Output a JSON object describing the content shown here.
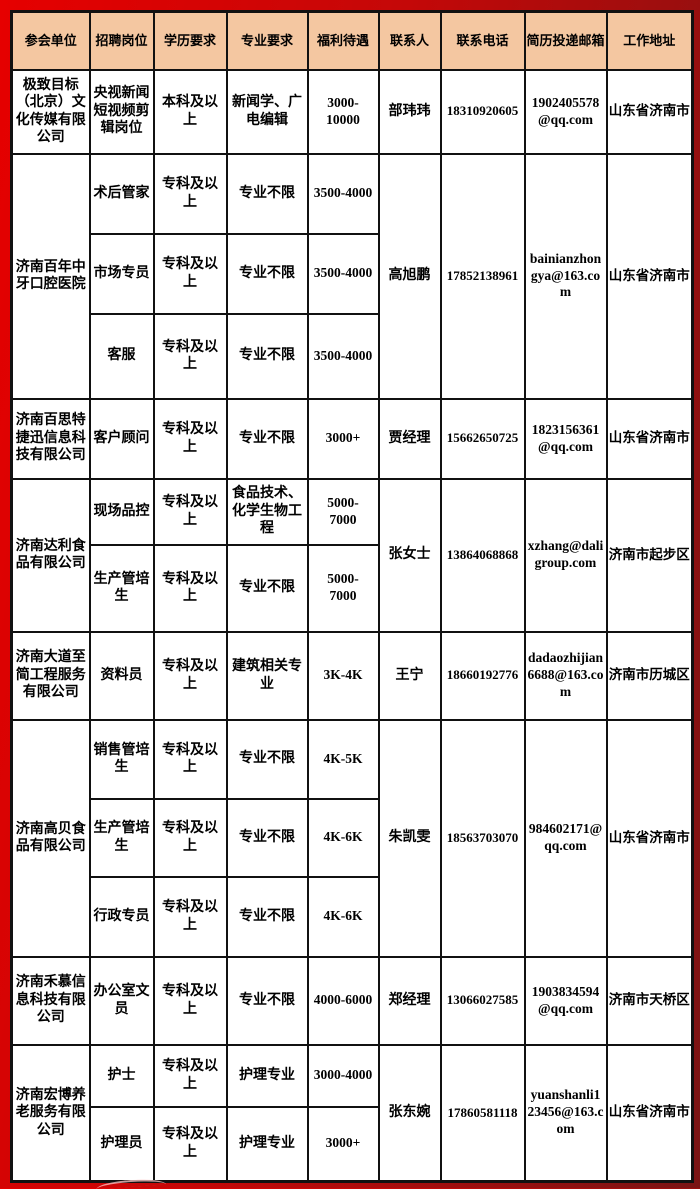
{
  "colors": {
    "page_bg_left": "#e60000",
    "page_bg_right": "#7a1414",
    "header_bg": "#f4c7a1",
    "cell_bg": "#ffffff",
    "border": "#111111",
    "text": "#000000"
  },
  "table": {
    "headers": [
      "参会单位",
      "招聘岗位",
      "学历要求",
      "专业要求",
      "福利待遇",
      "联系人",
      "联系电话",
      "简历投递邮箱",
      "工作地址"
    ],
    "companies": [
      {
        "name": "极致目标（北京）文化传媒有限公司",
        "contact": "部玮玮",
        "phone": "18310920605",
        "email": "1902405578@qq.com",
        "address": "山东省济南市",
        "positions": [
          {
            "title": "央视新闻短视频剪辑岗位",
            "education": "本科及以上",
            "major": "新闻学、广电编辑",
            "salary": "3000-10000"
          }
        ]
      },
      {
        "name": "济南百年中牙口腔医院",
        "contact": "高旭鹏",
        "phone": "17852138961",
        "email": "bainianzhongya@163.com",
        "address": "山东省济南市",
        "positions": [
          {
            "title": "术后管家",
            "education": "专科及以上",
            "major": "专业不限",
            "salary": "3500-4000"
          },
          {
            "title": "市场专员",
            "education": "专科及以上",
            "major": "专业不限",
            "salary": "3500-4000"
          },
          {
            "title": "客服",
            "education": "专科及以上",
            "major": "专业不限",
            "salary": "3500-4000"
          }
        ]
      },
      {
        "name": "济南百思特捷迅信息科技有限公司",
        "contact": "贾经理",
        "phone": "15662650725",
        "email": "1823156361@qq.com",
        "address": "山东省济南市",
        "positions": [
          {
            "title": "客户顾问",
            "education": "专科及以上",
            "major": "专业不限",
            "salary": "3000+"
          }
        ]
      },
      {
        "name": "济南达利食品有限公司",
        "contact": "张女士",
        "phone": "13864068868",
        "email": "xzhang@daligroup.com",
        "address": "济南市起步区",
        "positions": [
          {
            "title": "现场品控",
            "education": "专科及以上",
            "major": "食品技术、化学生物工程",
            "salary": "5000-\n7000"
          },
          {
            "title": "生产管培生",
            "education": "专科及以上",
            "major": "专业不限",
            "salary": "5000-\n7000"
          }
        ]
      },
      {
        "name": "济南大道至简工程服务有限公司",
        "contact": "王宁",
        "phone": "18660192776",
        "email": "dadaozhijian6688@163.com",
        "address": "济南市历城区",
        "positions": [
          {
            "title": "资料员",
            "education": "专科及以上",
            "major": "建筑相关专业",
            "salary": "3K-4K"
          }
        ]
      },
      {
        "name": "济南高贝食品有限公司",
        "contact": "朱凯雯",
        "phone": "18563703070",
        "email": "984602171@qq.com",
        "address": "山东省济南市",
        "positions": [
          {
            "title": "销售管培生",
            "education": "专科及以上",
            "major": "专业不限",
            "salary": "4K-5K"
          },
          {
            "title": "生产管培生",
            "education": "专科及以上",
            "major": "专业不限",
            "salary": "4K-6K"
          },
          {
            "title": "行政专员",
            "education": "专科及以上",
            "major": "专业不限",
            "salary": "4K-6K"
          }
        ]
      },
      {
        "name": "济南禾慕信息科技有限公司",
        "contact": "郑经理",
        "phone": "13066027585",
        "email": "1903834594@qq.com",
        "address": "济南市天桥区",
        "positions": [
          {
            "title": "办公室文员",
            "education": "专科及以上",
            "major": "专业不限",
            "salary": "4000-6000"
          }
        ]
      },
      {
        "name": "济南宏博养老服务有限公司",
        "contact": "张东婉",
        "phone": "17860581118",
        "email": "yuanshanli123456@163.com",
        "address": "山东省济南市",
        "positions": [
          {
            "title": "护士",
            "education": "专科及以上",
            "major": "护理专业",
            "salary": "3000-4000"
          },
          {
            "title": "护理员",
            "education": "专科及以上",
            "major": "护理专业",
            "salary": "3000+"
          }
        ]
      }
    ]
  }
}
